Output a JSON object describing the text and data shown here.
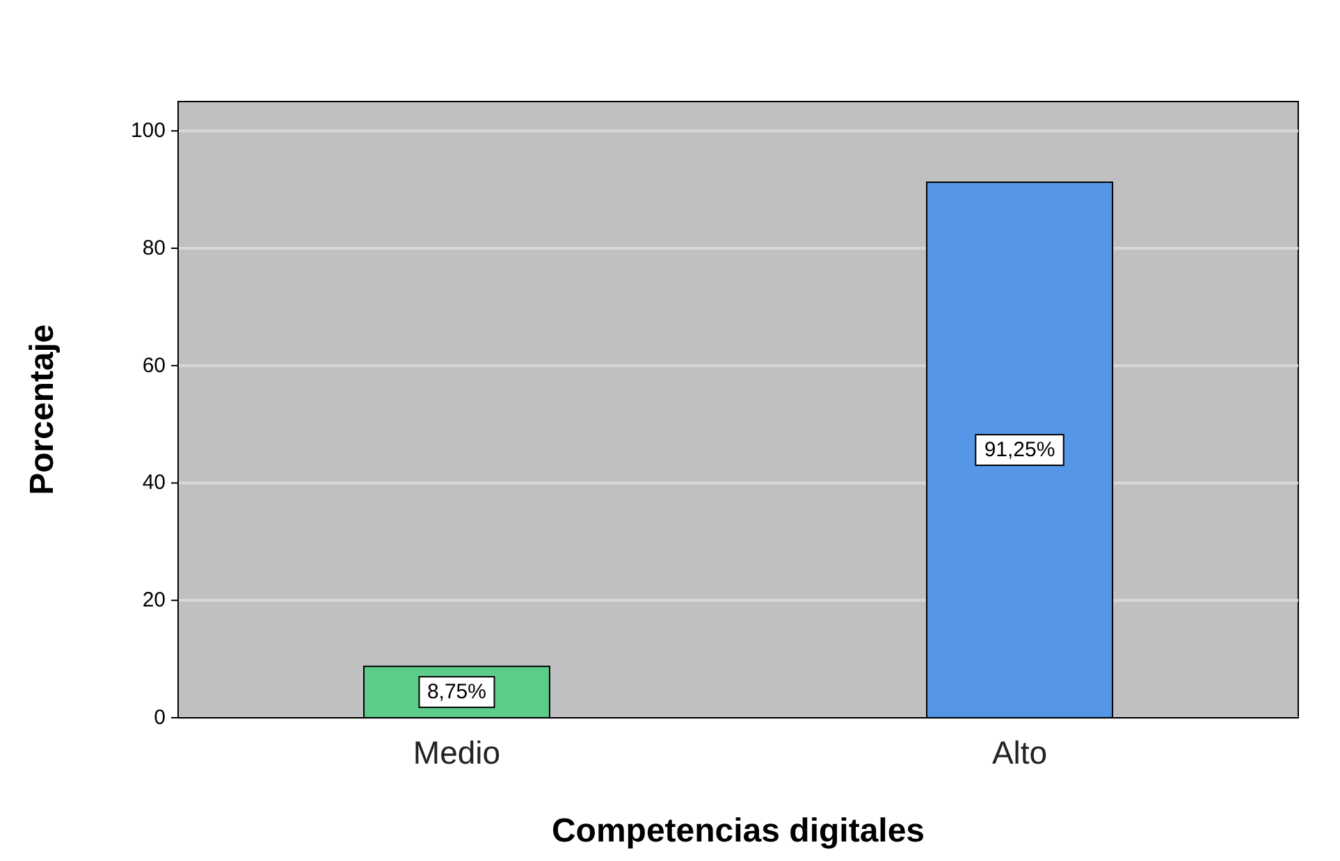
{
  "chart_data": {
    "type": "bar",
    "xlabel": "Competencias digitales",
    "ylabel": "Porcentaje",
    "categories": [
      "Medio",
      "Alto"
    ],
    "values": [
      8.75,
      91.25
    ],
    "colors": [
      "#5ccc8a",
      "#5596e6"
    ],
    "value_labels": [
      "8,75%",
      "91,25%"
    ],
    "ylim": [
      0,
      105
    ],
    "yticks": [
      0,
      20,
      40,
      60,
      80,
      100
    ],
    "grid": "y"
  }
}
